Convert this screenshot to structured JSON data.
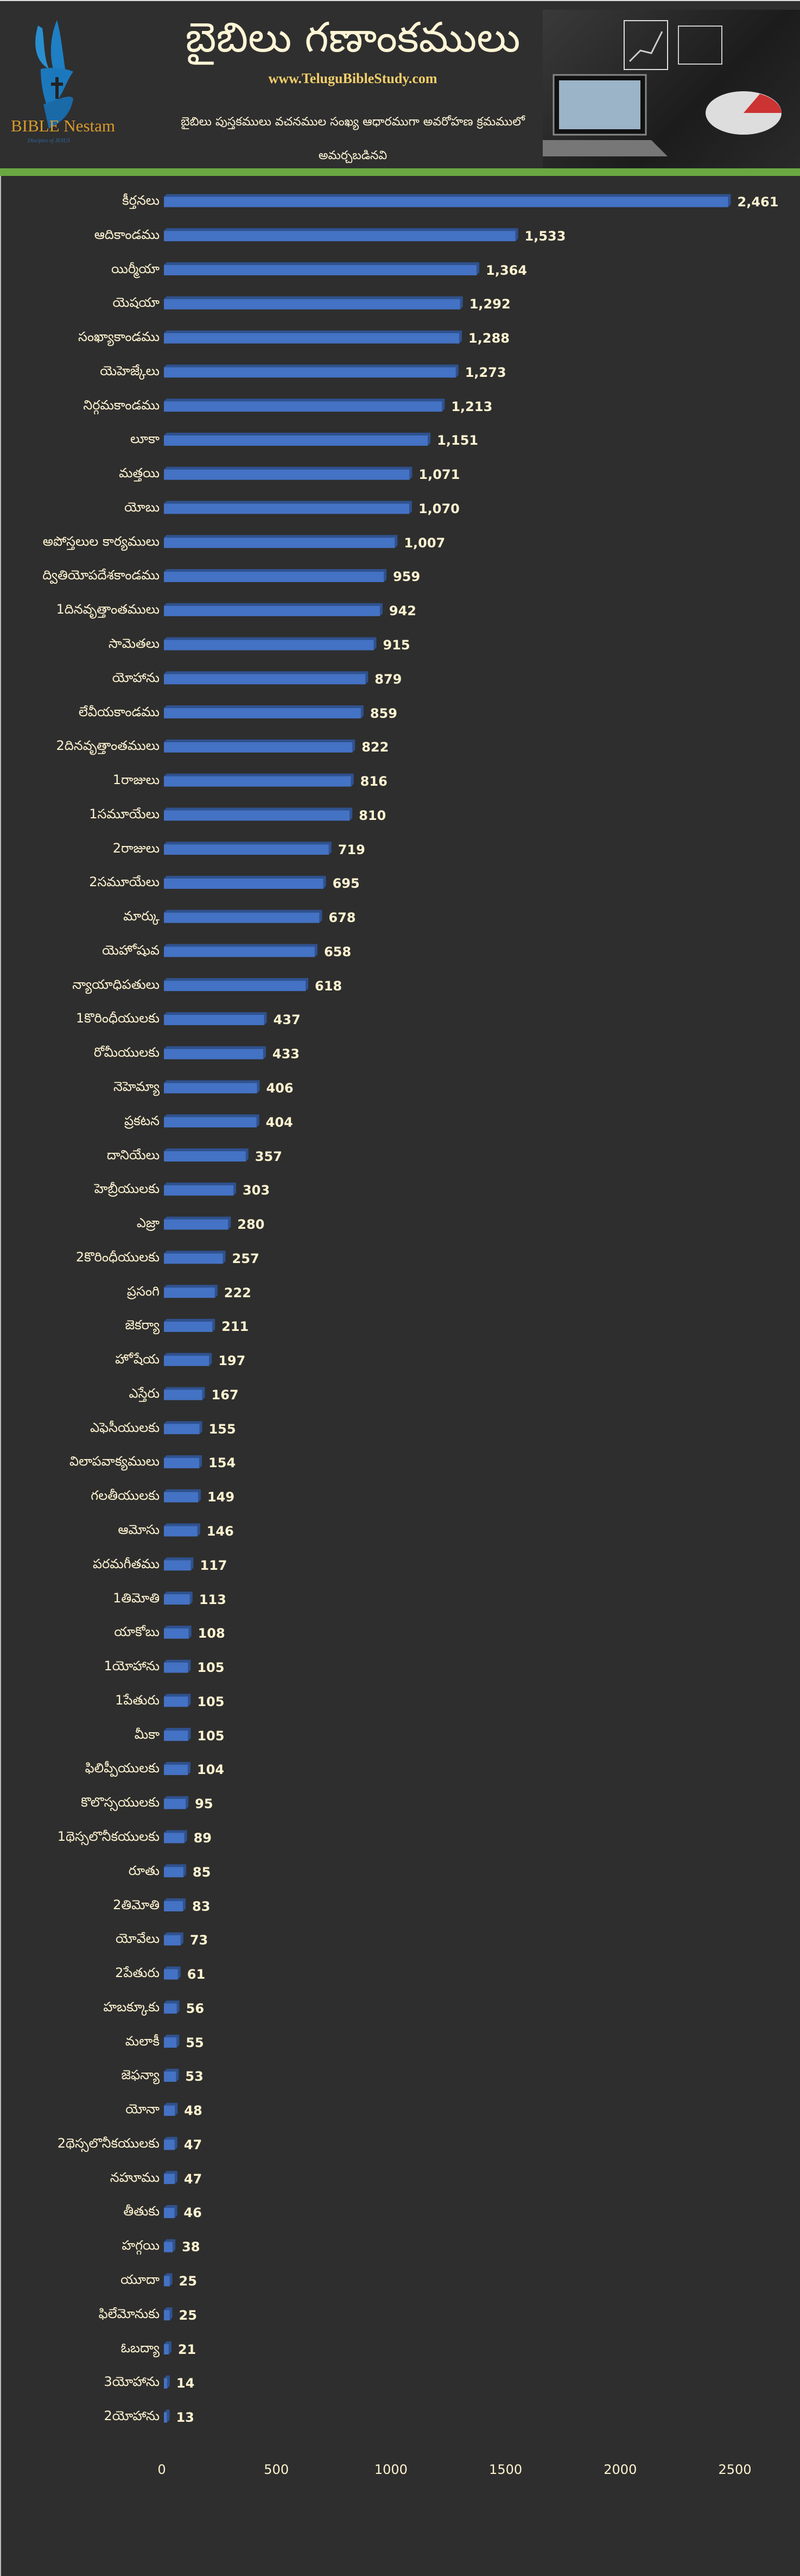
{
  "header": {
    "title": "బైబిలు గణాంకములు",
    "website": "www.TeluguBibleStudy.com",
    "subtitle": "బైబిలు పుస్తకములు వచనముల సంఖ్య ఆధారముగా అవరోహణ క్రమములో అమర్చబడినవి",
    "logo_text": "BIBLE Nestam",
    "logo_tagline": "Disciples of JESUS"
  },
  "colors": {
    "bar": "#4472c4",
    "bar_top": "#2f528f",
    "background": "#2e2e2e",
    "accent_green": "#6aa842",
    "text": "#fff3d0"
  },
  "chart_data": {
    "type": "bar",
    "orientation": "horizontal",
    "categories": [
      "కీర్తనలు",
      "ఆదికాండము",
      "యిర్మీయా",
      "యెషయా",
      "సంఖ్యాకాండము",
      "యెహెజ్కేలు",
      "నిర్గమకాండము",
      "లూకా",
      "మత్తయి",
      "యోబు",
      "అపోస్తలుల కార్యములు",
      "ద్వితియోపదేశకాండము",
      "1దినవృత్తాంతములు",
      "సామెతలు",
      "యోహాను",
      "లేవీయకాండము",
      "2దినవృత్తాంతములు",
      "1రాజులు",
      "1సమూయేలు",
      "2రాజులు",
      "2సమూయేలు",
      "మార్కు",
      "యెహోషువ",
      "న్యాయాధిపతులు",
      "1కొరింధీయులకు",
      "రోమీయులకు",
      "నెహెమ్యా",
      "ప్రకటన",
      "దానియేలు",
      "హెబ్రీయులకు",
      "ఎజ్రా",
      "2కొరింధీయులకు",
      "ప్రసంగి",
      "జెకర్యా",
      "హోషేయ",
      "ఎస్తేరు",
      "ఎఫెసీయులకు",
      "విలాపవాక్యములు",
      "గలతీయులకు",
      "ఆమోసు",
      "పరమగీతము",
      "1తిమోతి",
      "యాకోబు",
      "1యోహాను",
      "1పేతురు",
      "మీకా",
      "ఫిలిప్పీయులకు",
      "కొలొస్సయులకు",
      "1థెస్సలొనీకయులకు",
      "రూతు",
      "2తిమోతి",
      "యోవేలు",
      "2పేతురు",
      "హబక్కూకు",
      "మలాకీ",
      "జెఫన్యా",
      "యోనా",
      "2థెస్సలొనీకయులకు",
      "నహూము",
      "తీతుకు",
      "హగ్గయి",
      "యూదా",
      "ఫిలేమోనుకు",
      "ఓబద్యా",
      "3యోహాను",
      "2యోహాను"
    ],
    "values": [
      2461,
      1533,
      1364,
      1292,
      1288,
      1273,
      1213,
      1151,
      1071,
      1070,
      1007,
      959,
      942,
      915,
      879,
      859,
      822,
      816,
      810,
      719,
      695,
      678,
      658,
      618,
      437,
      433,
      406,
      404,
      357,
      303,
      280,
      257,
      222,
      211,
      197,
      167,
      155,
      154,
      149,
      146,
      117,
      113,
      108,
      105,
      105,
      105,
      104,
      95,
      89,
      85,
      83,
      73,
      61,
      56,
      55,
      53,
      48,
      47,
      47,
      46,
      38,
      25,
      25,
      21,
      14,
      13
    ],
    "value_labels": [
      "2,461",
      "1,533",
      "1,364",
      "1,292",
      "1,288",
      "1,273",
      "1,213",
      "1,151",
      "1,071",
      "1,070",
      "1,007",
      "959",
      "942",
      "915",
      "879",
      "859",
      "822",
      "816",
      "810",
      "719",
      "695",
      "678",
      "658",
      "618",
      "437",
      "433",
      "406",
      "404",
      "357",
      "303",
      "280",
      "257",
      "222",
      "211",
      "197",
      "167",
      "155",
      "154",
      "149",
      "146",
      "117",
      "113",
      "108",
      "105",
      "105",
      "105",
      "104",
      "95",
      "89",
      "85",
      "83",
      "73",
      "61",
      "56",
      "55",
      "53",
      "48",
      "47",
      "47",
      "46",
      "38",
      "25",
      "25",
      "21",
      "14",
      "13"
    ],
    "xticks": [
      "0",
      "500",
      "1000",
      "1500",
      "2000",
      "2500"
    ],
    "xlim": [
      0,
      2500
    ],
    "grid": false,
    "legend": "none"
  }
}
